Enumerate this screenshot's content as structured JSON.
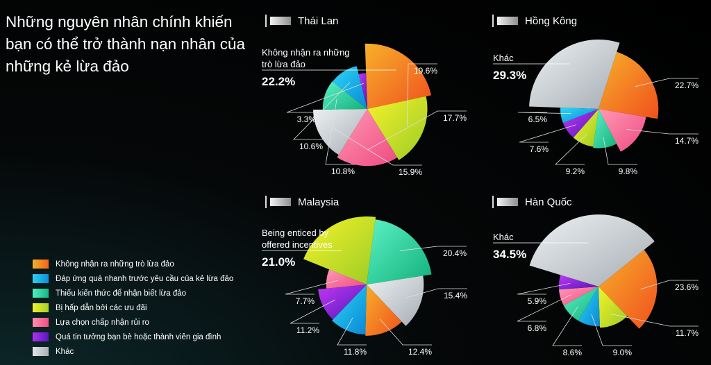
{
  "title": "Những nguyên nhân chính khiến bạn có thể trở thành nạn nhân của những kẻ lừa đảo",
  "legend": [
    {
      "label": "Không nhận ra những trò lừa đảo",
      "color": "#f58a1f"
    },
    {
      "label": "Đáp ứng quá nhanh trước yêu cầu của kẻ lừa đảo",
      "color": "#1fb3e8"
    },
    {
      "label": "Thiếu kiến thức để nhận biết lừa đảo",
      "color": "#2fd9a0"
    },
    {
      "label": "Bị hấp dẫn bởi các ưu đãi",
      "color": "#c8e02a"
    },
    {
      "label": "Lựa chọn chấp nhận rủi ro",
      "color": "#f76b96"
    },
    {
      "label": "Quá tin tưởng bạn bè hoặc thành viên gia đình",
      "color": "#7a20d8"
    },
    {
      "label": "Khác",
      "color": "#c2c8cd"
    }
  ],
  "chart_data": [
    {
      "type": "pie",
      "title": "Thái Lan",
      "highlight_label": "Không nhận ra những trò lừa đảo",
      "highlight_value": "22.2%",
      "slices": [
        {
          "category": "Không nhận ra những trò lừa đảo",
          "value": 22.2,
          "label": "22.2%"
        },
        {
          "category": "Bị hấp dẫn bởi các ưu đãi",
          "value": 19.6,
          "label": "19.6%"
        },
        {
          "category": "Lựa chọn chấp nhận rủi ro",
          "value": 17.7,
          "label": "17.7%"
        },
        {
          "category": "Khác",
          "value": 15.9,
          "label": "15.9%"
        },
        {
          "category": "Thiếu kiến thức để nhận biết lừa đảo",
          "value": 10.8,
          "label": "10.8%"
        },
        {
          "category": "Đáp ứng quá nhanh trước yêu cầu của kẻ lừa đảo",
          "value": 10.6,
          "label": "10.6%"
        },
        {
          "category": "Quá tin tưởng bạn bè hoặc thành viên gia đình",
          "value": 3.3,
          "label": "3.3%"
        }
      ]
    },
    {
      "type": "pie",
      "title": "Hồng Kông",
      "highlight_label": "Khác",
      "highlight_value": "29.3%",
      "slices": [
        {
          "category": "Khác",
          "value": 29.3,
          "label": "29.3%"
        },
        {
          "category": "Không nhận ra những trò lừa đảo",
          "value": 22.7,
          "label": "22.7%"
        },
        {
          "category": "Lựa chọn chấp nhận rủi ro",
          "value": 14.7,
          "label": "14.7%"
        },
        {
          "category": "Thiếu kiến thức để nhận biết lừa đảo",
          "value": 9.8,
          "label": "9.8%"
        },
        {
          "category": "Bị hấp dẫn bởi các ưu đãi",
          "value": 9.2,
          "label": "9.2%"
        },
        {
          "category": "Quá tin tưởng bạn bè hoặc thành viên gia đình",
          "value": 7.6,
          "label": "7.6%"
        },
        {
          "category": "Đáp ứng quá nhanh trước yêu cầu của kẻ lừa đảo",
          "value": 6.5,
          "label": "6.5%"
        }
      ]
    },
    {
      "type": "pie",
      "title": "Malaysia",
      "highlight_label": "Being enticed by offered incentives",
      "highlight_value": "21.0%",
      "slices": [
        {
          "category": "Bị hấp dẫn bởi các ưu đãi",
          "value": 21.0,
          "label": "21.0%"
        },
        {
          "category": "Thiếu kiến thức để nhận biết lừa đảo",
          "value": 20.4,
          "label": "20.4%"
        },
        {
          "category": "Khác",
          "value": 15.4,
          "label": "15.4%"
        },
        {
          "category": "Không nhận ra những trò lừa đảo",
          "value": 12.4,
          "label": "12.4%"
        },
        {
          "category": "Đáp ứng quá nhanh trước yêu cầu của kẻ lừa đảo",
          "value": 11.8,
          "label": "11.8%"
        },
        {
          "category": "Quá tin tưởng bạn bè hoặc thành viên gia đình",
          "value": 11.2,
          "label": "11.2%"
        },
        {
          "category": "Lựa chọn chấp nhận rủi ro",
          "value": 7.7,
          "label": "7.7%"
        }
      ]
    },
    {
      "type": "pie",
      "title": "Hàn Quốc",
      "highlight_label": "Khác",
      "highlight_value": "34.5%",
      "slices": [
        {
          "category": "Khác",
          "value": 34.5,
          "label": "34.5%"
        },
        {
          "category": "Không nhận ra những trò lừa đảo",
          "value": 23.6,
          "label": "23.6%"
        },
        {
          "category": "Bị hấp dẫn bởi các ưu đãi",
          "value": 11.7,
          "label": "11.7%"
        },
        {
          "category": "Đáp ứng quá nhanh trước yêu cầu của kẻ lừa đảo",
          "value": 9.0,
          "label": "9.0%"
        },
        {
          "category": "Thiếu kiến thức để nhận biết lừa đảo",
          "value": 8.6,
          "label": "8.6%"
        },
        {
          "category": "Lựa chọn chấp nhận rủi ro",
          "value": 6.8,
          "label": "6.8%"
        },
        {
          "category": "Quá tin tưởng bạn bè hoặc thành viên gia đình",
          "value": 5.9,
          "label": "5.9%"
        }
      ]
    }
  ]
}
